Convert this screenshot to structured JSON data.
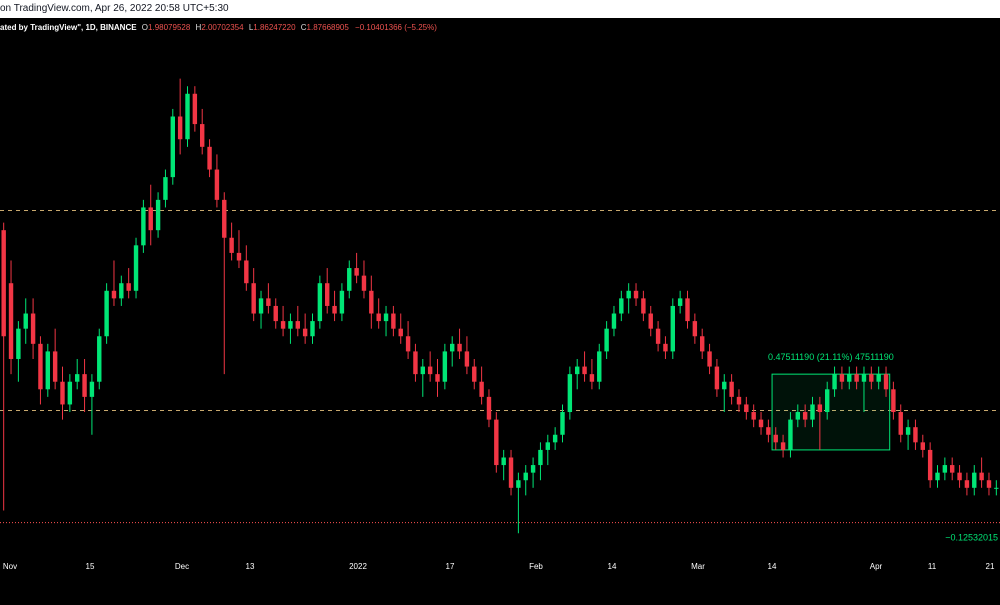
{
  "header": {
    "title_text": "on TradingView.com, Apr 26, 2022 20:58 UTC+5:30"
  },
  "legend": {
    "prefix": "ated by TradingView\", 1D, BINANCE",
    "open_label": "O",
    "open_value": "1.98079528",
    "high_label": "H",
    "high_value": "2.00702354",
    "low_label": "L",
    "low_value": "1.86247220",
    "close_label": "C",
    "close_value": "1.87668905",
    "change_value": "−0.10401366 (−5.25%)"
  },
  "measure": {
    "label": "0.47511190 (21.11%) 47511190"
  },
  "price_label": {
    "text": "−0.12532015"
  },
  "xaxis": {
    "ticks": [
      "Nov",
      "15",
      "Dec",
      "13",
      "2022",
      "17",
      "Feb",
      "14",
      "Mar",
      "14",
      "Apr",
      "11",
      "21"
    ]
  },
  "colors": {
    "up": "#00e676",
    "down": "#f23645",
    "dashed_line": "#c9a96e",
    "red_line": "#ff5252",
    "measure_box": "#00e676",
    "axis_text": "#ffffff"
  },
  "chart_data": {
    "type": "candlestick",
    "ohlc": [
      {
        "o": 2.55,
        "h": 2.6,
        "l": 0.7,
        "c": 1.85,
        "dir": "down"
      },
      {
        "o": 2.2,
        "h": 2.35,
        "l": 1.6,
        "c": 1.7,
        "dir": "down"
      },
      {
        "o": 1.7,
        "h": 1.95,
        "l": 1.55,
        "c": 1.9,
        "dir": "up"
      },
      {
        "o": 1.9,
        "h": 2.1,
        "l": 1.8,
        "c": 2.0,
        "dir": "up"
      },
      {
        "o": 2.0,
        "h": 2.1,
        "l": 1.7,
        "c": 1.8,
        "dir": "down"
      },
      {
        "o": 1.8,
        "h": 1.85,
        "l": 1.4,
        "c": 1.5,
        "dir": "down"
      },
      {
        "o": 1.5,
        "h": 1.8,
        "l": 1.45,
        "c": 1.75,
        "dir": "up"
      },
      {
        "o": 1.75,
        "h": 1.9,
        "l": 1.5,
        "c": 1.55,
        "dir": "down"
      },
      {
        "o": 1.55,
        "h": 1.65,
        "l": 1.3,
        "c": 1.4,
        "dir": "down"
      },
      {
        "o": 1.4,
        "h": 1.6,
        "l": 1.35,
        "c": 1.55,
        "dir": "up"
      },
      {
        "o": 1.55,
        "h": 1.7,
        "l": 1.5,
        "c": 1.6,
        "dir": "up"
      },
      {
        "o": 1.6,
        "h": 1.7,
        "l": 1.35,
        "c": 1.45,
        "dir": "down"
      },
      {
        "o": 1.45,
        "h": 1.6,
        "l": 1.2,
        "c": 1.55,
        "dir": "up"
      },
      {
        "o": 1.55,
        "h": 1.9,
        "l": 1.5,
        "c": 1.85,
        "dir": "up"
      },
      {
        "o": 1.85,
        "h": 2.2,
        "l": 1.8,
        "c": 2.15,
        "dir": "up"
      },
      {
        "o": 2.15,
        "h": 2.35,
        "l": 2.05,
        "c": 2.1,
        "dir": "down"
      },
      {
        "o": 2.1,
        "h": 2.25,
        "l": 2.05,
        "c": 2.2,
        "dir": "up"
      },
      {
        "o": 2.2,
        "h": 2.3,
        "l": 2.1,
        "c": 2.15,
        "dir": "down"
      },
      {
        "o": 2.15,
        "h": 2.5,
        "l": 2.1,
        "c": 2.45,
        "dir": "up"
      },
      {
        "o": 2.45,
        "h": 2.75,
        "l": 2.4,
        "c": 2.7,
        "dir": "up"
      },
      {
        "o": 2.7,
        "h": 2.85,
        "l": 2.45,
        "c": 2.55,
        "dir": "down"
      },
      {
        "o": 2.55,
        "h": 2.8,
        "l": 2.5,
        "c": 2.75,
        "dir": "up"
      },
      {
        "o": 2.75,
        "h": 2.95,
        "l": 2.7,
        "c": 2.9,
        "dir": "up"
      },
      {
        "o": 2.9,
        "h": 3.35,
        "l": 2.85,
        "c": 3.3,
        "dir": "up"
      },
      {
        "o": 3.3,
        "h": 3.55,
        "l": 3.05,
        "c": 3.15,
        "dir": "down"
      },
      {
        "o": 3.15,
        "h": 3.5,
        "l": 3.1,
        "c": 3.45,
        "dir": "up"
      },
      {
        "o": 3.45,
        "h": 3.5,
        "l": 3.2,
        "c": 3.25,
        "dir": "down"
      },
      {
        "o": 3.25,
        "h": 3.35,
        "l": 3.05,
        "c": 3.1,
        "dir": "down"
      },
      {
        "o": 3.1,
        "h": 3.15,
        "l": 2.9,
        "c": 2.95,
        "dir": "down"
      },
      {
        "o": 2.95,
        "h": 3.05,
        "l": 2.7,
        "c": 2.75,
        "dir": "down"
      },
      {
        "o": 2.75,
        "h": 2.8,
        "l": 1.6,
        "c": 2.5,
        "dir": "down"
      },
      {
        "o": 2.5,
        "h": 2.6,
        "l": 2.35,
        "c": 2.4,
        "dir": "down"
      },
      {
        "o": 2.4,
        "h": 2.55,
        "l": 2.3,
        "c": 2.35,
        "dir": "down"
      },
      {
        "o": 2.35,
        "h": 2.45,
        "l": 2.15,
        "c": 2.2,
        "dir": "down"
      },
      {
        "o": 2.2,
        "h": 2.3,
        "l": 1.95,
        "c": 2.0,
        "dir": "down"
      },
      {
        "o": 2.0,
        "h": 2.15,
        "l": 1.9,
        "c": 2.1,
        "dir": "up"
      },
      {
        "o": 2.1,
        "h": 2.2,
        "l": 2.0,
        "c": 2.05,
        "dir": "down"
      },
      {
        "o": 2.05,
        "h": 2.1,
        "l": 1.9,
        "c": 1.95,
        "dir": "down"
      },
      {
        "o": 1.95,
        "h": 2.05,
        "l": 1.85,
        "c": 1.9,
        "dir": "down"
      },
      {
        "o": 1.9,
        "h": 2.0,
        "l": 1.8,
        "c": 1.95,
        "dir": "up"
      },
      {
        "o": 1.95,
        "h": 2.05,
        "l": 1.85,
        "c": 1.9,
        "dir": "down"
      },
      {
        "o": 1.9,
        "h": 2.0,
        "l": 1.8,
        "c": 1.85,
        "dir": "down"
      },
      {
        "o": 1.85,
        "h": 2.0,
        "l": 1.8,
        "c": 1.95,
        "dir": "up"
      },
      {
        "o": 1.95,
        "h": 2.25,
        "l": 1.9,
        "c": 2.2,
        "dir": "up"
      },
      {
        "o": 2.2,
        "h": 2.3,
        "l": 2.0,
        "c": 2.05,
        "dir": "down"
      },
      {
        "o": 2.05,
        "h": 2.15,
        "l": 1.95,
        "c": 2.0,
        "dir": "down"
      },
      {
        "o": 2.0,
        "h": 2.2,
        "l": 1.95,
        "c": 2.15,
        "dir": "up"
      },
      {
        "o": 2.15,
        "h": 2.35,
        "l": 2.1,
        "c": 2.3,
        "dir": "up"
      },
      {
        "o": 2.3,
        "h": 2.4,
        "l": 2.2,
        "c": 2.25,
        "dir": "down"
      },
      {
        "o": 2.25,
        "h": 2.35,
        "l": 2.1,
        "c": 2.15,
        "dir": "down"
      },
      {
        "o": 2.15,
        "h": 2.25,
        "l": 1.9,
        "c": 2.0,
        "dir": "down"
      },
      {
        "o": 2.0,
        "h": 2.1,
        "l": 1.9,
        "c": 1.95,
        "dir": "down"
      },
      {
        "o": 1.95,
        "h": 2.05,
        "l": 1.85,
        "c": 2.0,
        "dir": "up"
      },
      {
        "o": 2.0,
        "h": 2.05,
        "l": 1.85,
        "c": 1.9,
        "dir": "down"
      },
      {
        "o": 1.9,
        "h": 2.0,
        "l": 1.8,
        "c": 1.85,
        "dir": "down"
      },
      {
        "o": 1.85,
        "h": 1.95,
        "l": 1.7,
        "c": 1.75,
        "dir": "down"
      },
      {
        "o": 1.75,
        "h": 1.8,
        "l": 1.55,
        "c": 1.6,
        "dir": "down"
      },
      {
        "o": 1.6,
        "h": 1.7,
        "l": 1.45,
        "c": 1.65,
        "dir": "up"
      },
      {
        "o": 1.65,
        "h": 1.75,
        "l": 1.55,
        "c": 1.6,
        "dir": "down"
      },
      {
        "o": 1.6,
        "h": 1.7,
        "l": 1.45,
        "c": 1.55,
        "dir": "down"
      },
      {
        "o": 1.55,
        "h": 1.8,
        "l": 1.5,
        "c": 1.75,
        "dir": "up"
      },
      {
        "o": 1.75,
        "h": 1.85,
        "l": 1.65,
        "c": 1.8,
        "dir": "up"
      },
      {
        "o": 1.8,
        "h": 1.9,
        "l": 1.7,
        "c": 1.75,
        "dir": "down"
      },
      {
        "o": 1.75,
        "h": 1.85,
        "l": 1.6,
        "c": 1.65,
        "dir": "down"
      },
      {
        "o": 1.65,
        "h": 1.7,
        "l": 1.5,
        "c": 1.55,
        "dir": "down"
      },
      {
        "o": 1.55,
        "h": 1.65,
        "l": 1.4,
        "c": 1.45,
        "dir": "down"
      },
      {
        "o": 1.45,
        "h": 1.5,
        "l": 1.25,
        "c": 1.3,
        "dir": "down"
      },
      {
        "o": 1.3,
        "h": 1.35,
        "l": 0.95,
        "c": 1.0,
        "dir": "down"
      },
      {
        "o": 1.0,
        "h": 1.1,
        "l": 0.9,
        "c": 1.05,
        "dir": "up"
      },
      {
        "o": 1.05,
        "h": 1.1,
        "l": 0.8,
        "c": 0.85,
        "dir": "down"
      },
      {
        "o": 0.85,
        "h": 0.95,
        "l": 0.55,
        "c": 0.9,
        "dir": "up"
      },
      {
        "o": 0.9,
        "h": 1.0,
        "l": 0.8,
        "c": 0.95,
        "dir": "up"
      },
      {
        "o": 0.95,
        "h": 1.05,
        "l": 0.85,
        "c": 1.0,
        "dir": "up"
      },
      {
        "o": 1.0,
        "h": 1.15,
        "l": 0.9,
        "c": 1.1,
        "dir": "up"
      },
      {
        "o": 1.1,
        "h": 1.2,
        "l": 1.0,
        "c": 1.15,
        "dir": "up"
      },
      {
        "o": 1.15,
        "h": 1.25,
        "l": 1.1,
        "c": 1.2,
        "dir": "up"
      },
      {
        "o": 1.2,
        "h": 1.4,
        "l": 1.15,
        "c": 1.35,
        "dir": "up"
      },
      {
        "o": 1.35,
        "h": 1.65,
        "l": 1.3,
        "c": 1.6,
        "dir": "up"
      },
      {
        "o": 1.6,
        "h": 1.7,
        "l": 1.5,
        "c": 1.65,
        "dir": "up"
      },
      {
        "o": 1.65,
        "h": 1.75,
        "l": 1.55,
        "c": 1.6,
        "dir": "down"
      },
      {
        "o": 1.6,
        "h": 1.7,
        "l": 1.5,
        "c": 1.55,
        "dir": "down"
      },
      {
        "o": 1.55,
        "h": 1.8,
        "l": 1.5,
        "c": 1.75,
        "dir": "up"
      },
      {
        "o": 1.75,
        "h": 1.95,
        "l": 1.7,
        "c": 1.9,
        "dir": "up"
      },
      {
        "o": 1.9,
        "h": 2.05,
        "l": 1.85,
        "c": 2.0,
        "dir": "up"
      },
      {
        "o": 2.0,
        "h": 2.15,
        "l": 1.95,
        "c": 2.1,
        "dir": "up"
      },
      {
        "o": 2.1,
        "h": 2.2,
        "l": 2.0,
        "c": 2.15,
        "dir": "up"
      },
      {
        "o": 2.15,
        "h": 2.2,
        "l": 2.05,
        "c": 2.1,
        "dir": "down"
      },
      {
        "o": 2.1,
        "h": 2.15,
        "l": 1.95,
        "c": 2.0,
        "dir": "down"
      },
      {
        "o": 2.0,
        "h": 2.05,
        "l": 1.85,
        "c": 1.9,
        "dir": "down"
      },
      {
        "o": 1.9,
        "h": 1.95,
        "l": 1.75,
        "c": 1.8,
        "dir": "down"
      },
      {
        "o": 1.8,
        "h": 1.85,
        "l": 1.7,
        "c": 1.75,
        "dir": "down"
      },
      {
        "o": 1.75,
        "h": 2.1,
        "l": 1.7,
        "c": 2.05,
        "dir": "up"
      },
      {
        "o": 2.05,
        "h": 2.15,
        "l": 2.0,
        "c": 2.1,
        "dir": "up"
      },
      {
        "o": 2.1,
        "h": 2.15,
        "l": 1.9,
        "c": 1.95,
        "dir": "down"
      },
      {
        "o": 1.95,
        "h": 2.0,
        "l": 1.8,
        "c": 1.85,
        "dir": "down"
      },
      {
        "o": 1.85,
        "h": 1.9,
        "l": 1.7,
        "c": 1.75,
        "dir": "down"
      },
      {
        "o": 1.75,
        "h": 1.8,
        "l": 1.6,
        "c": 1.65,
        "dir": "down"
      },
      {
        "o": 1.65,
        "h": 1.7,
        "l": 1.45,
        "c": 1.5,
        "dir": "down"
      },
      {
        "o": 1.5,
        "h": 1.6,
        "l": 1.35,
        "c": 1.55,
        "dir": "up"
      },
      {
        "o": 1.55,
        "h": 1.6,
        "l": 1.4,
        "c": 1.45,
        "dir": "down"
      },
      {
        "o": 1.45,
        "h": 1.5,
        "l": 1.35,
        "c": 1.4,
        "dir": "down"
      },
      {
        "o": 1.4,
        "h": 1.45,
        "l": 1.3,
        "c": 1.35,
        "dir": "down"
      },
      {
        "o": 1.35,
        "h": 1.4,
        "l": 1.25,
        "c": 1.3,
        "dir": "down"
      },
      {
        "o": 1.3,
        "h": 1.35,
        "l": 1.2,
        "c": 1.25,
        "dir": "down"
      },
      {
        "o": 1.25,
        "h": 1.3,
        "l": 1.15,
        "c": 1.2,
        "dir": "down"
      },
      {
        "o": 1.2,
        "h": 1.25,
        "l": 1.1,
        "c": 1.15,
        "dir": "down"
      },
      {
        "o": 1.15,
        "h": 1.2,
        "l": 1.05,
        "c": 1.1,
        "dir": "down"
      },
      {
        "o": 1.1,
        "h": 1.35,
        "l": 1.05,
        "c": 1.3,
        "dir": "up"
      },
      {
        "o": 1.3,
        "h": 1.4,
        "l": 1.25,
        "c": 1.35,
        "dir": "up"
      },
      {
        "o": 1.35,
        "h": 1.4,
        "l": 1.25,
        "c": 1.3,
        "dir": "down"
      },
      {
        "o": 1.3,
        "h": 1.45,
        "l": 1.25,
        "c": 1.4,
        "dir": "up"
      },
      {
        "o": 1.4,
        "h": 1.45,
        "l": 1.1,
        "c": 1.35,
        "dir": "down"
      },
      {
        "o": 1.35,
        "h": 1.55,
        "l": 1.3,
        "c": 1.5,
        "dir": "up"
      },
      {
        "o": 1.5,
        "h": 1.65,
        "l": 1.45,
        "c": 1.6,
        "dir": "up"
      },
      {
        "o": 1.6,
        "h": 1.65,
        "l": 1.5,
        "c": 1.55,
        "dir": "down"
      },
      {
        "o": 1.55,
        "h": 1.65,
        "l": 1.5,
        "c": 1.6,
        "dir": "up"
      },
      {
        "o": 1.6,
        "h": 1.65,
        "l": 1.5,
        "c": 1.55,
        "dir": "down"
      },
      {
        "o": 1.55,
        "h": 1.65,
        "l": 1.35,
        "c": 1.6,
        "dir": "up"
      },
      {
        "o": 1.6,
        "h": 1.65,
        "l": 1.5,
        "c": 1.55,
        "dir": "down"
      },
      {
        "o": 1.55,
        "h": 1.65,
        "l": 1.5,
        "c": 1.6,
        "dir": "up"
      },
      {
        "o": 1.6,
        "h": 1.65,
        "l": 1.45,
        "c": 1.5,
        "dir": "down"
      },
      {
        "o": 1.5,
        "h": 1.55,
        "l": 1.3,
        "c": 1.35,
        "dir": "down"
      },
      {
        "o": 1.35,
        "h": 1.4,
        "l": 1.15,
        "c": 1.2,
        "dir": "down"
      },
      {
        "o": 1.2,
        "h": 1.3,
        "l": 1.1,
        "c": 1.25,
        "dir": "up"
      },
      {
        "o": 1.25,
        "h": 1.3,
        "l": 1.1,
        "c": 1.15,
        "dir": "down"
      },
      {
        "o": 1.15,
        "h": 1.2,
        "l": 1.05,
        "c": 1.1,
        "dir": "down"
      },
      {
        "o": 1.1,
        "h": 1.15,
        "l": 0.85,
        "c": 0.9,
        "dir": "down"
      },
      {
        "o": 0.9,
        "h": 1.0,
        "l": 0.85,
        "c": 0.95,
        "dir": "up"
      },
      {
        "o": 0.95,
        "h": 1.05,
        "l": 0.9,
        "c": 1.0,
        "dir": "up"
      },
      {
        "o": 1.0,
        "h": 1.05,
        "l": 0.9,
        "c": 0.95,
        "dir": "down"
      },
      {
        "o": 0.95,
        "h": 1.0,
        "l": 0.85,
        "c": 0.9,
        "dir": "down"
      },
      {
        "o": 0.9,
        "h": 0.95,
        "l": 0.8,
        "c": 0.85,
        "dir": "down"
      },
      {
        "o": 0.85,
        "h": 1.0,
        "l": 0.8,
        "c": 0.95,
        "dir": "up"
      },
      {
        "o": 0.95,
        "h": 1.05,
        "l": 0.85,
        "c": 0.9,
        "dir": "down"
      },
      {
        "o": 0.9,
        "h": 0.95,
        "l": 0.8,
        "c": 0.85,
        "dir": "down"
      },
      {
        "o": 0.85,
        "h": 0.9,
        "l": 0.8,
        "c": 0.85,
        "dir": "up"
      }
    ],
    "dashed_levels": [
      2.68,
      1.36
    ],
    "red_level": 0.62,
    "measure_range": {
      "from": 1.1,
      "to": 1.6
    },
    "y_range": [
      0.4,
      3.95
    ]
  }
}
